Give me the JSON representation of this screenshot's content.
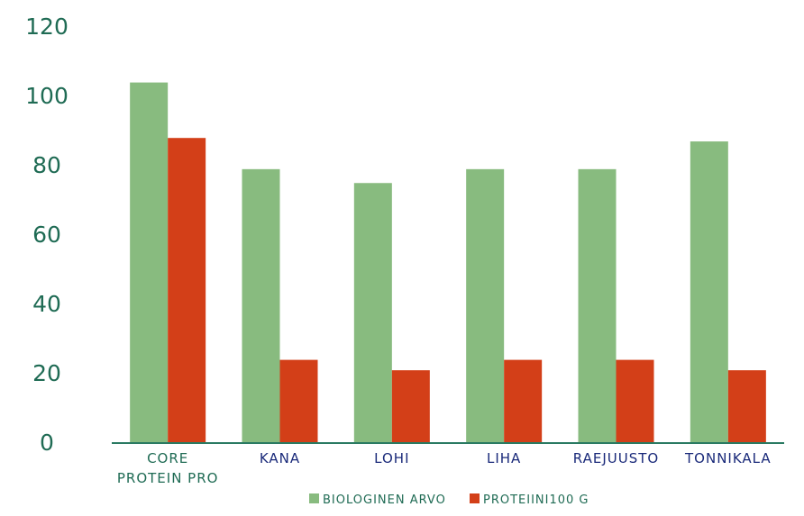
{
  "chart_data": {
    "type": "bar",
    "title": "",
    "xlabel": "",
    "ylabel": "",
    "ylim": [
      0,
      120
    ],
    "yticks": [
      "0",
      "20",
      "40",
      "60",
      "80",
      "100",
      "120"
    ],
    "categories": [
      "CORE PROTEIN PRO",
      "KANA",
      "LOHI",
      "LIHA",
      "RAEJUUSTO",
      "TONNIKALA"
    ],
    "series": [
      {
        "name": "BIOLOGINEN ARVO",
        "color": "#88bb7f",
        "values": [
          104,
          79,
          75,
          79,
          79,
          87
        ]
      },
      {
        "name": "PROTEIINI100 G",
        "color": "#d33f18",
        "values": [
          88,
          24,
          21,
          24,
          24,
          21
        ]
      }
    ],
    "grid": false,
    "legend_position": "bottom",
    "colors": {
      "axis": "#2a7a62",
      "ytick_text": "#1f6b54",
      "first_category_text": "#1f6b54",
      "category_text": "#1a2a7a"
    }
  }
}
